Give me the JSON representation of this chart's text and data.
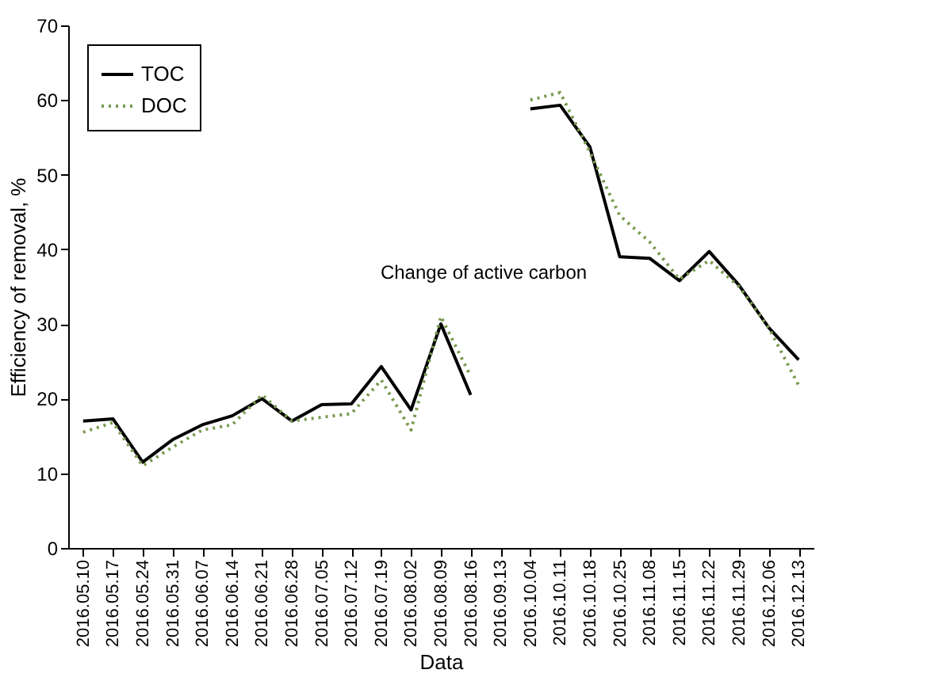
{
  "chart_data": {
    "type": "line",
    "xlabel": "Data",
    "ylabel": "Efficiency of removal, %",
    "categories": [
      "2016.05.10",
      "2016.05.17",
      "2016.05.24",
      "2016.05.31",
      "2016.06.07",
      "2016.06.14",
      "2016.06.21",
      "2016.06.28",
      "2016.07.05",
      "2016.07.12",
      "2016.07.19",
      "2016.08.02",
      "2016.08.09",
      "2016.08.16",
      "2016.09.13",
      "2016.10.04",
      "2016.10.11",
      "2016.10.18",
      "2016.10.25",
      "2016.11.08",
      "2016.11.15",
      "2016.11.22",
      "2016.11.29",
      "2016.12.06",
      "2016.12.13"
    ],
    "series": [
      {
        "name": "TOC",
        "color": "#000000",
        "line_style": "solid",
        "values": [
          17,
          17.3,
          11.5,
          14.5,
          16.5,
          17.7,
          20,
          17,
          19.2,
          19.3,
          24.3,
          18.5,
          30,
          20.5,
          null,
          58.8,
          59.3,
          53.7,
          39,
          38.8,
          35.8,
          39.7,
          35.2,
          29.5,
          25.2
        ]
      },
      {
        "name": "DOC",
        "color": "#7a9a50",
        "line_style": "dotted",
        "values": [
          15.5,
          16.8,
          11,
          13.5,
          15.8,
          16.5,
          20.5,
          17,
          17.5,
          18,
          22.5,
          15.8,
          31,
          23,
          null,
          60,
          61,
          53,
          44.5,
          41,
          36,
          38.5,
          35,
          29.5,
          21.8
        ]
      }
    ],
    "ylim": [
      0,
      70
    ],
    "yticks": [
      0,
      10,
      20,
      30,
      40,
      50,
      60,
      70
    ],
    "grid": false,
    "legend": "top left",
    "marker": "none",
    "annotations": [
      "Change of active carbon"
    ]
  }
}
